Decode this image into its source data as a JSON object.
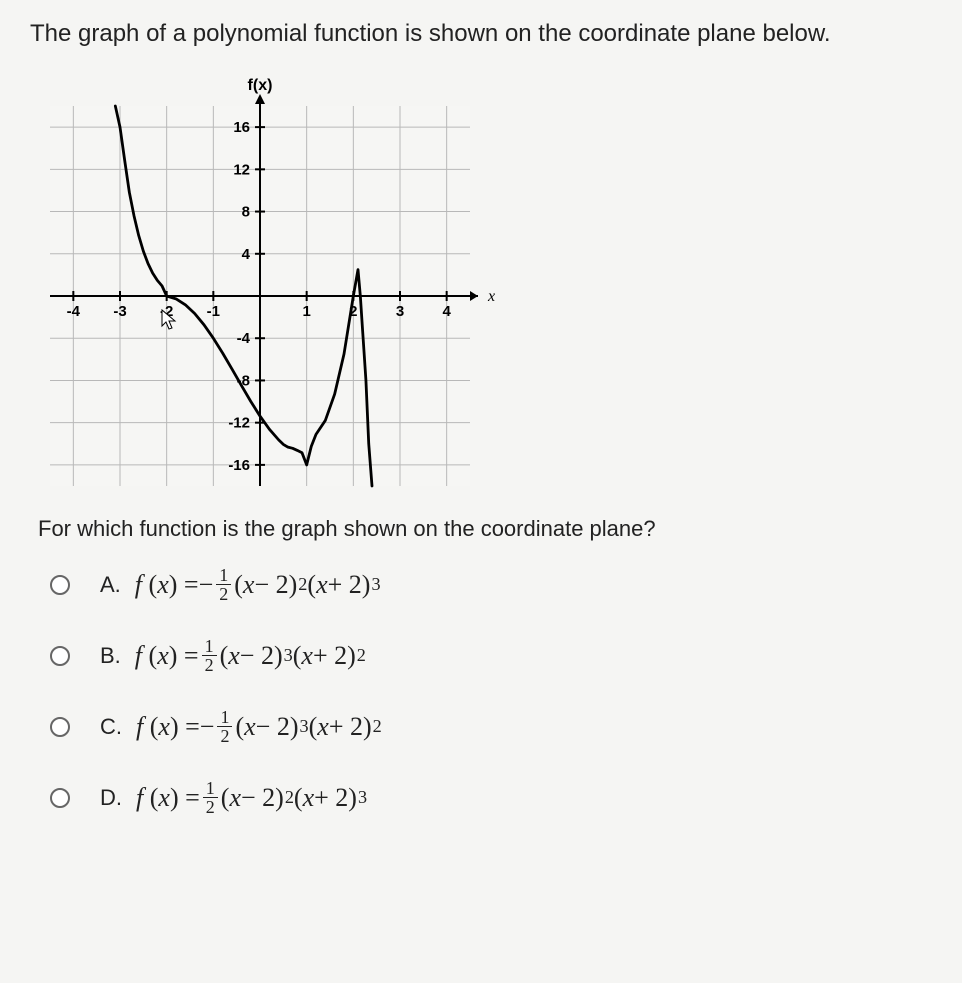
{
  "title": "The graph of a polynomial function is shown on the coordinate plane below.",
  "question": "For which function is the graph shown on the coordinate plane?",
  "chart": {
    "type": "line",
    "axis_label_y": "f(x)",
    "axis_label_x": "x",
    "xlim": [
      -4.5,
      4.5
    ],
    "ylim": [
      -18,
      18
    ],
    "xtick_positions": [
      -4,
      -3,
      -2,
      -1,
      1,
      2,
      3,
      4
    ],
    "xtick_labels": [
      "-4",
      "-3",
      "-2",
      "-1",
      "1",
      "2",
      "3",
      "4"
    ],
    "ytick_positions": [
      -16,
      -12,
      -8,
      -4,
      4,
      8,
      12,
      16
    ],
    "ytick_labels": [
      "-16",
      "-12",
      "-8",
      "-4",
      "4",
      "8",
      "12",
      "16"
    ],
    "grid_color": "#b8b8b8",
    "axis_color": "#000000",
    "curve_color": "#000000",
    "curve_width": 2.8,
    "background_color": "#f6f6f4",
    "tick_font_size": 15,
    "tick_font_weight": "bold",
    "label_font_size": 16,
    "label_font_weight": "bold",
    "cursor_position_x": -2.1,
    "curve_data_xy": [
      [
        -3.1,
        18
      ],
      [
        -3,
        16.0
      ],
      [
        -2.9,
        12.86
      ],
      [
        -2.8,
        9.83
      ],
      [
        -2.7,
        7.6
      ],
      [
        -2.6,
        5.74
      ],
      [
        -2.5,
        4.25
      ],
      [
        -2.4,
        3.08
      ],
      [
        -2.3,
        2.17
      ],
      [
        -2.2,
        1.48
      ],
      [
        -2.1,
        0.96
      ],
      [
        -2,
        0.0
      ],
      [
        -1.8,
        -0.27
      ],
      [
        -1.6,
        -0.83
      ],
      [
        -1.4,
        -1.66
      ],
      [
        -1.2,
        -2.73
      ],
      [
        -1,
        -4.0
      ],
      [
        -0.8,
        -5.41
      ],
      [
        -0.6,
        -6.92
      ],
      [
        -0.4,
        -8.46
      ],
      [
        -0.2,
        -9.97
      ],
      [
        0,
        -11.38
      ],
      [
        0.2,
        -12.62
      ],
      [
        0.4,
        -13.63
      ],
      [
        0.5,
        -14.06
      ],
      [
        0.6,
        -14.32
      ],
      [
        0.7,
        -14.43
      ],
      [
        0.8,
        -14.63
      ],
      [
        0.9,
        -14.85
      ],
      [
        1,
        -16
      ],
      [
        1.1,
        -14.23
      ],
      [
        1.2,
        -13.11
      ],
      [
        1.4,
        -11.79
      ],
      [
        1.6,
        -9.29
      ],
      [
        1.8,
        -5.5
      ],
      [
        2,
        0
      ],
      [
        2.1,
        2.5
      ],
      [
        2.15,
        0
      ],
      [
        2.2,
        -3.36
      ],
      [
        2.27,
        -8
      ],
      [
        2.33,
        -14
      ],
      [
        2.4,
        -18
      ]
    ]
  },
  "options": {
    "A": {
      "letter": "A.",
      "sign": "−",
      "pow1": "2",
      "pow2": "3"
    },
    "B": {
      "letter": "B.",
      "sign": "",
      "pow1": "3",
      "pow2": "2"
    },
    "C": {
      "letter": "C.",
      "sign": "−",
      "pow1": "3",
      "pow2": "2"
    },
    "D": {
      "letter": "D.",
      "sign": "",
      "pow1": "2",
      "pow2": "3"
    }
  }
}
